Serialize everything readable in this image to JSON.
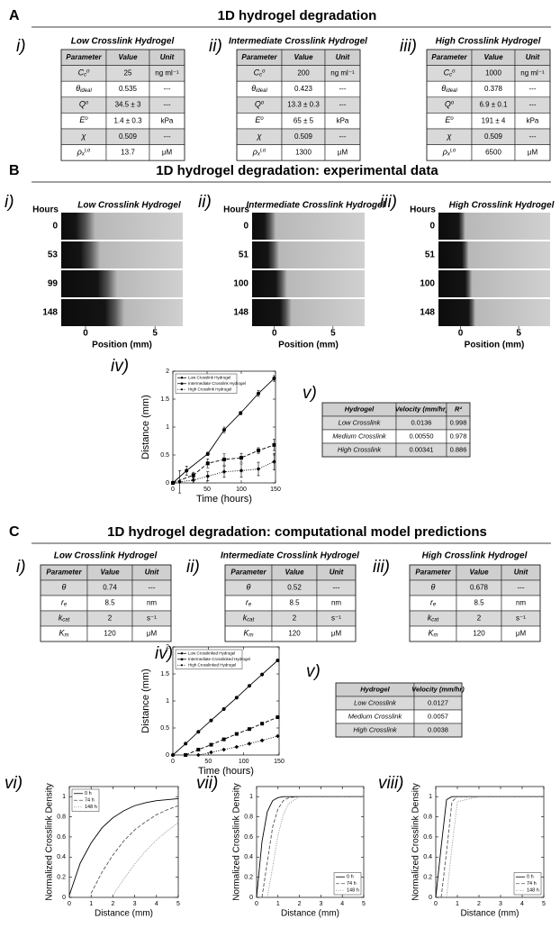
{
  "panel_a": {
    "label": "A",
    "title": "1D hydrogel degradation",
    "tables": [
      {
        "numeral": "i)",
        "title": "Low Crosslink Hydrogel",
        "header": [
          "Parameter",
          "Value",
          "Unit"
        ],
        "rows": [
          [
            {
              "base": "C",
              "sub": "c",
              "sup": "o"
            },
            "25",
            "ng ml⁻¹"
          ],
          [
            {
              "base": "θ",
              "sub": "ideal"
            },
            "0.535",
            "---"
          ],
          [
            {
              "base": "Q",
              "sup": "o"
            },
            "34.5 ± 3",
            "---"
          ],
          [
            {
              "base": "E",
              "sup": "o"
            },
            "1.4 ± 0.3",
            "kPa"
          ],
          [
            {
              "base": "χ"
            },
            "0.509",
            "---"
          ],
          [
            {
              "base": "ρ",
              "sub": "x",
              "sup": "i,o"
            },
            "13.7",
            "μM"
          ]
        ]
      },
      {
        "numeral": "ii)",
        "title": "Intermediate Crosslink Hydrogel",
        "header": [
          "Parameter",
          "Value",
          "Unit"
        ],
        "rows": [
          [
            {
              "base": "C",
              "sub": "c",
              "sup": "o"
            },
            "200",
            "ng ml⁻¹"
          ],
          [
            {
              "base": "θ",
              "sub": "ideal"
            },
            "0.423",
            "---"
          ],
          [
            {
              "base": "Q",
              "sup": "o"
            },
            "13.3 ± 0.3",
            "---"
          ],
          [
            {
              "base": "E",
              "sup": "o"
            },
            "65 ± 5",
            "kPa"
          ],
          [
            {
              "base": "χ"
            },
            "0.509",
            "---"
          ],
          [
            {
              "base": "ρ",
              "sub": "x",
              "sup": "i,o"
            },
            "1300",
            "μM"
          ]
        ]
      },
      {
        "numeral": "iii)",
        "title": "High Crosslink Hydrogel",
        "header": [
          "Parameter",
          "Value",
          "Unit"
        ],
        "rows": [
          [
            {
              "base": "C",
              "sub": "c",
              "sup": "o"
            },
            "1000",
            "ng ml⁻¹"
          ],
          [
            {
              "base": "θ",
              "sub": "ideal"
            },
            "0.378",
            "---"
          ],
          [
            {
              "base": "Q",
              "sup": "o"
            },
            "6.9 ± 0.1",
            "---"
          ],
          [
            {
              "base": "E",
              "sup": "o"
            },
            "191 ± 4",
            "kPa"
          ],
          [
            {
              "base": "χ"
            },
            "0.509",
            "---"
          ],
          [
            {
              "base": "ρ",
              "sub": "x",
              "sup": "i,o"
            },
            "6500",
            "μM"
          ]
        ]
      }
    ]
  },
  "panel_b": {
    "label": "B",
    "title": "1D hydrogel degradation: experimental data",
    "images": [
      {
        "numeral": "i)",
        "title": "Low Crosslink Hydrogel",
        "hours_label": "Hours",
        "hours": [
          0,
          53,
          99,
          148
        ],
        "xlim": [
          -1.75,
          7
        ],
        "xticks": [
          0,
          5
        ],
        "xlabel": "Position (mm)"
      },
      {
        "numeral": "ii)",
        "title": "Intermediate Crosslink Hydrogel",
        "hours_label": "Hours",
        "hours": [
          0,
          51,
          100,
          148
        ],
        "xlim": [
          -1.9,
          7.7
        ],
        "xticks": [
          0,
          5
        ],
        "xlabel": "Position (mm)"
      },
      {
        "numeral": "iii)",
        "title": "High Crosslink Hydrogel",
        "hours_label": "Hours",
        "hours": [
          0,
          51,
          100,
          148
        ],
        "xlim": [
          -1.9,
          7.7
        ],
        "xticks": [
          0,
          5
        ],
        "xlabel": "Position (mm)"
      }
    ],
    "chart_numeral": "iv)",
    "chart_data": {
      "type": "line",
      "xlabel": "Time (hours)",
      "ylabel": "Distance (mm)",
      "xlim": [
        0,
        150
      ],
      "xticks": [
        0,
        50,
        100,
        150
      ],
      "ylim": [
        0,
        2
      ],
      "yticks": [
        0,
        0.5,
        1,
        1.5,
        2
      ],
      "legend": "upper left",
      "series": [
        {
          "name": "Low Crosslink Hydrogel",
          "color": "#000000",
          "marker": "circle",
          "dash": "solid",
          "x": [
            0,
            20,
            51,
            75,
            99,
            125,
            148
          ],
          "values": [
            0,
            0.22,
            0.52,
            0.95,
            1.25,
            1.6,
            1.87
          ],
          "errors": [
            0.03,
            0.08,
            0.03,
            0.05,
            0.03,
            0.05,
            0.05
          ]
        },
        {
          "name": "Intermediate Crosslink Hydrogel",
          "color": "#000000",
          "marker": "square",
          "dash": "dashed",
          "x": [
            0,
            30,
            51,
            75,
            100,
            125,
            148
          ],
          "values": [
            0,
            0.14,
            0.35,
            0.42,
            0.45,
            0.58,
            0.68
          ],
          "errors": [
            0.02,
            0.05,
            0.08,
            0.1,
            0.08,
            0.05,
            0.1
          ]
        },
        {
          "name": "High Crosslink Hydrogel",
          "color": "#000000",
          "marker": "diamond",
          "dash": "dotted",
          "x": [
            10,
            30,
            51,
            75,
            100,
            125,
            148
          ],
          "values": [
            0.02,
            0.05,
            0.12,
            0.2,
            0.22,
            0.25,
            0.38
          ],
          "errors": [
            0.2,
            0.05,
            0.08,
            0.1,
            0.12,
            0.12,
            0.15
          ]
        }
      ]
    },
    "table_numeral": "v)",
    "table": {
      "header": [
        "Hydrogel",
        "Velocity (mm/hr)",
        "R²"
      ],
      "rows": [
        [
          "Low Crosslink",
          "0.0136",
          "0.998"
        ],
        [
          "Medium Crosslink",
          "0.00550",
          "0.978"
        ],
        [
          "High Crosslink",
          "0.00341",
          "0.886"
        ]
      ]
    }
  },
  "panel_c": {
    "label": "C",
    "title": "1D hydrogel degradation: computational model predictions",
    "tables": [
      {
        "numeral": "i)",
        "title": "Low Crosslink Hydrogel",
        "header": [
          "Parameter",
          "Value",
          "Unit"
        ],
        "rows": [
          [
            {
              "base": "θ"
            },
            "0.74",
            "---"
          ],
          [
            {
              "base": "r",
              "sub": "e"
            },
            "8.5",
            "nm"
          ],
          [
            {
              "base": "k",
              "sub": "cat"
            },
            "2",
            "s⁻¹"
          ],
          [
            {
              "base": "K",
              "sub": "m"
            },
            "120",
            "μM"
          ]
        ]
      },
      {
        "numeral": "ii)",
        "title": "Intermediate Crosslink Hydrogel",
        "header": [
          "Parameter",
          "Value",
          "Unit"
        ],
        "rows": [
          [
            {
              "base": "θ"
            },
            "0.52",
            "---"
          ],
          [
            {
              "base": "r",
              "sub": "e"
            },
            "8.5",
            "nm"
          ],
          [
            {
              "base": "k",
              "sub": "cat"
            },
            "2",
            "s⁻¹"
          ],
          [
            {
              "base": "K",
              "sub": "m"
            },
            "120",
            "μM"
          ]
        ]
      },
      {
        "numeral": "iii)",
        "title": "High Crosslink Hydrogel",
        "header": [
          "Parameter",
          "Value",
          "Unit"
        ],
        "rows": [
          [
            {
              "base": "θ"
            },
            "0.678",
            "---"
          ],
          [
            {
              "base": "r",
              "sub": "e"
            },
            "8.5",
            "nm"
          ],
          [
            {
              "base": "k",
              "sub": "cat"
            },
            "2",
            "s⁻¹"
          ],
          [
            {
              "base": "K",
              "sub": "m"
            },
            "120",
            "μM"
          ]
        ]
      }
    ],
    "chart_numeral": "iv)",
    "chart_data": {
      "type": "line",
      "xlabel": "Time (hours)",
      "ylabel": "Distance (mm)",
      "xlim": [
        0,
        150
      ],
      "xticks": [
        0,
        50,
        100,
        150
      ],
      "ylim": [
        0,
        2
      ],
      "yticks": [
        0,
        0.5,
        1,
        1.5,
        2
      ],
      "legend": "upper left",
      "series": [
        {
          "name": "Low Crosslinked Hydrogel",
          "color": "#000000",
          "marker": "circle",
          "dash": "solid",
          "x": [
            0,
            18,
            36,
            54,
            72,
            90,
            108,
            126,
            148
          ],
          "values": [
            0,
            0.21,
            0.43,
            0.64,
            0.85,
            1.06,
            1.28,
            1.49,
            1.75
          ]
        },
        {
          "name": "Intermediate Crosslinked Hydrogel",
          "color": "#000000",
          "marker": "square",
          "dash": "dashed",
          "x": [
            18,
            36,
            54,
            72,
            90,
            108,
            126,
            148
          ],
          "values": [
            0,
            0.1,
            0.19,
            0.29,
            0.39,
            0.48,
            0.58,
            0.7
          ]
        },
        {
          "name": "High Crosslinked Hydrogel",
          "color": "#000000",
          "marker": "diamond",
          "dash": "dotted",
          "x": [
            36,
            54,
            72,
            90,
            108,
            126,
            148
          ],
          "values": [
            0,
            0.05,
            0.1,
            0.15,
            0.21,
            0.27,
            0.35
          ]
        }
      ]
    },
    "table_numeral": "v)",
    "table": {
      "header": [
        "Hydrogel",
        "Velocity (mm/hr)"
      ],
      "rows": [
        [
          "Low Crosslink",
          "0.0127"
        ],
        [
          "Medium Crosslink",
          "0.0057"
        ],
        [
          "High Crosslink",
          "0.0038"
        ]
      ]
    },
    "profiles": [
      {
        "numeral": "vi)",
        "chart_data": {
          "type": "line",
          "xlabel": "Distance (mm)",
          "ylabel": "Normalized Crosslink Density",
          "xlim": [
            0,
            5
          ],
          "xticks": [
            0,
            1,
            2,
            3,
            4,
            5
          ],
          "ylim": [
            0,
            1.1
          ],
          "yticks": [
            0,
            0.2,
            0.4,
            0.6,
            0.8,
            1
          ],
          "legend": "upper left",
          "series": [
            {
              "name": "0 h",
              "color": "#000000",
              "dash": "solid",
              "x": [
                0,
                0.5,
                1,
                1.5,
                2,
                2.5,
                3,
                3.5,
                4,
                4.5,
                5
              ],
              "values": [
                0.02,
                0.34,
                0.54,
                0.69,
                0.79,
                0.86,
                0.91,
                0.94,
                0.96,
                0.97,
                0.98
              ]
            },
            {
              "name": "74 h",
              "color": "#555555",
              "dash": "dashed",
              "x": [
                0,
                0.5,
                1,
                1.5,
                2,
                2.5,
                3,
                3.5,
                4,
                4.5,
                5
              ],
              "values": [
                null,
                null,
                0.04,
                0.25,
                0.42,
                0.56,
                0.67,
                0.75,
                0.82,
                0.87,
                0.91
              ]
            },
            {
              "name": "148 h",
              "color": "#888888",
              "dash": "dotted",
              "x": [
                0,
                0.5,
                1,
                1.5,
                2,
                2.5,
                3,
                3.5,
                4,
                4.5,
                5
              ],
              "values": [
                null,
                null,
                null,
                null,
                0.02,
                0.18,
                0.33,
                0.46,
                0.57,
                0.66,
                0.74
              ]
            }
          ]
        }
      },
      {
        "numeral": "vii)",
        "chart_data": {
          "type": "line",
          "xlabel": "Distance (mm)",
          "ylabel": "Normalized Crosslink Density",
          "xlim": [
            0,
            5
          ],
          "xticks": [
            0,
            1,
            2,
            3,
            4,
            5
          ],
          "ylim": [
            0,
            1.1
          ],
          "yticks": [
            0,
            0.2,
            0.4,
            0.6,
            0.8,
            1
          ],
          "legend": "lower right",
          "series": [
            {
              "name": "0 h",
              "color": "#000000",
              "dash": "solid",
              "x": [
                0,
                0.25,
                0.5,
                0.75,
                1,
                1.25,
                1.5,
                2,
                3,
                4,
                5
              ],
              "values": [
                0,
                0.55,
                0.85,
                0.96,
                0.99,
                1,
                1,
                1,
                1,
                1,
                1
              ]
            },
            {
              "name": "74 h",
              "color": "#555555",
              "dash": "dashed",
              "x": [
                0,
                0.25,
                0.5,
                0.75,
                1,
                1.25,
                1.5,
                2,
                3,
                4,
                5
              ],
              "values": [
                null,
                0,
                0.35,
                0.7,
                0.88,
                0.96,
                0.99,
                1,
                1,
                1,
                1
              ]
            },
            {
              "name": "148 h",
              "color": "#888888",
              "dash": "dotted",
              "x": [
                0,
                0.25,
                0.5,
                0.75,
                1,
                1.25,
                1.5,
                2,
                3,
                4,
                5
              ],
              "values": [
                null,
                null,
                0,
                0.3,
                0.62,
                0.82,
                0.93,
                1,
                1,
                1,
                1
              ]
            }
          ]
        }
      },
      {
        "numeral": "viii)",
        "chart_data": {
          "type": "line",
          "xlabel": "Distance (mm)",
          "ylabel": "Normalized Crosslink Density",
          "xlim": [
            0,
            5
          ],
          "xticks": [
            0,
            1,
            2,
            3,
            4,
            5
          ],
          "ylim": [
            0,
            1.1
          ],
          "yticks": [
            0,
            0.2,
            0.4,
            0.6,
            0.8,
            1
          ],
          "legend": "lower right",
          "series": [
            {
              "name": "0 h",
              "color": "#000000",
              "dash": "solid",
              "x": [
                0,
                0.25,
                0.5,
                0.75,
                1,
                2,
                3,
                4,
                5
              ],
              "values": [
                0,
                0.5,
                0.97,
                1,
                1,
                1,
                1,
                1,
                1
              ]
            },
            {
              "name": "74 h",
              "color": "#555555",
              "dash": "dashed",
              "x": [
                0,
                0.25,
                0.5,
                0.75,
                1,
                2,
                3,
                4,
                5
              ],
              "values": [
                null,
                0,
                0.45,
                0.95,
                1,
                1,
                1,
                1,
                1
              ]
            },
            {
              "name": "148 h",
              "color": "#888888",
              "dash": "dotted",
              "x": [
                0,
                0.25,
                0.5,
                0.75,
                1,
                2,
                3,
                4,
                5
              ],
              "values": [
                null,
                null,
                0,
                0.5,
                0.95,
                1,
                1,
                1,
                1
              ]
            }
          ]
        }
      }
    ]
  }
}
